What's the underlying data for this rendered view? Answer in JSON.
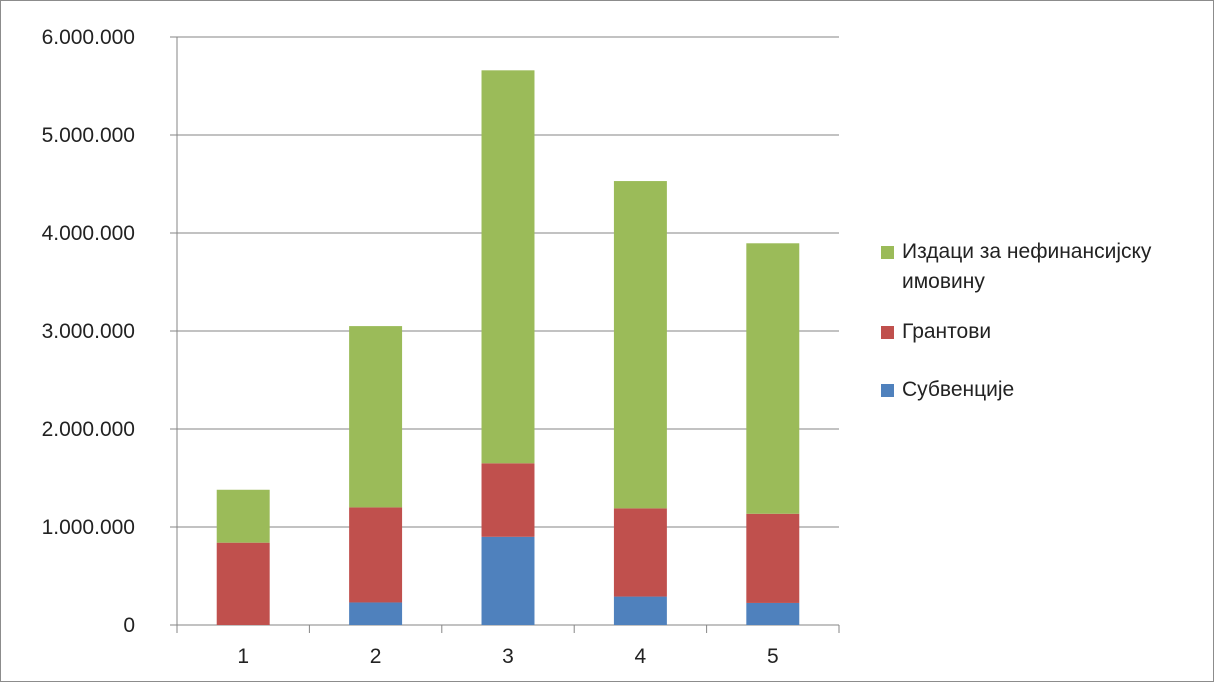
{
  "chart_data": {
    "type": "bar",
    "stacked": true,
    "categories": [
      "1",
      "2",
      "3",
      "4",
      "5"
    ],
    "series": [
      {
        "name": "Субвенције",
        "color": "#4f81bd",
        "values": [
          0,
          230000,
          900000,
          290000,
          225000
        ]
      },
      {
        "name": "Грантови",
        "color": "#c0504d",
        "values": [
          840000,
          970000,
          750000,
          900000,
          910000
        ]
      },
      {
        "name": "Издаци за нефинансијску имовину",
        "color": "#9bbb59",
        "values": [
          540000,
          1850000,
          4010000,
          3340000,
          2760000
        ]
      }
    ],
    "ylim": [
      0,
      6000000
    ],
    "yticks": [
      0,
      1000000,
      2000000,
      3000000,
      4000000,
      5000000,
      6000000
    ],
    "ytick_labels": [
      "0",
      "1.000.000",
      "2.000.000",
      "3.000.000",
      "4.000.000",
      "5.000.000",
      "6.000.000"
    ],
    "title": "",
    "xlabel": "",
    "ylabel": "",
    "grid": true,
    "legend_position": "right",
    "legend_order": [
      "Издаци за нефинансијску имовину",
      "Грантови",
      "Субвенције"
    ],
    "gridline_color": "#868686"
  }
}
